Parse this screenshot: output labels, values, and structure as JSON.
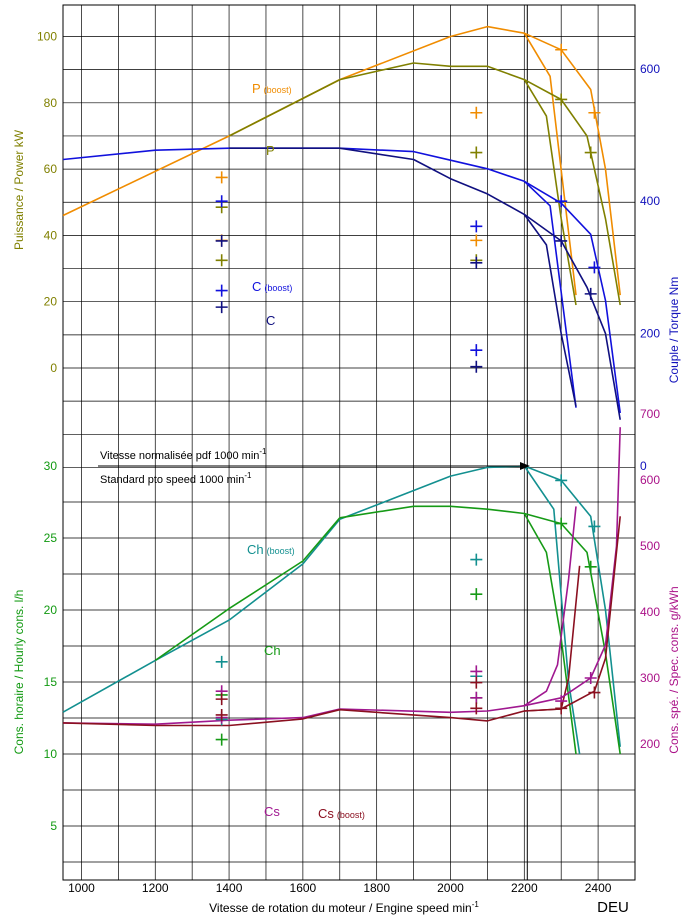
{
  "footer_tag": "DEU",
  "x_axis": {
    "label": "Vitesse de rotation du moteur / Engine speed min",
    "label_sup": "-1",
    "ticks": [
      1000,
      1200,
      1400,
      1600,
      1800,
      2000,
      2200,
      2400
    ],
    "range": [
      950,
      2500
    ]
  },
  "axes": {
    "power": {
      "label": "Puissance / Power kW",
      "ticks": [
        0,
        20,
        40,
        60,
        80,
        100
      ],
      "color": "#808000"
    },
    "torque": {
      "label": "Couple / Torque Nm",
      "ticks": [
        0,
        200,
        400,
        600
      ],
      "color": "#1111bb"
    },
    "hourly": {
      "label": "Cons. horaire / Hourly cons. l/h",
      "ticks": [
        5,
        10,
        15,
        20,
        25,
        30
      ],
      "color": "#119911"
    },
    "specific": {
      "label": "Cons. spé. / Spec. cons. g/kWh",
      "ticks": [
        200,
        300,
        400,
        500,
        600,
        700
      ],
      "color": "#aa1188"
    }
  },
  "pto_note": {
    "line1": "Vitesse normalisée pdf 1000 min",
    "line2": "Standard pto speed 1000 min",
    "sup": "-1"
  },
  "labels": {
    "p_boost_main": "P",
    "p_boost_sub": "(boost)",
    "p": "P",
    "c_boost_main": "C",
    "c_boost_sub": "(boost)",
    "c": "C",
    "ch_boost_main": "Ch",
    "ch_boost_sub": "(boost)",
    "ch": "Ch",
    "cs": "Cs",
    "cs_boost_main": "Cs",
    "cs_boost_sub": "(boost)"
  },
  "chart_data": {
    "type": "line",
    "x_unit": "min-1",
    "series": [
      {
        "name": "P (boost)",
        "axis": "power",
        "color": "#f08c00",
        "x": [
          950,
          1400,
          1700,
          2000,
          2100,
          2200,
          2270,
          2340
        ],
        "y": [
          46,
          70,
          87,
          100,
          103,
          101,
          88,
          22
        ]
      },
      {
        "name": "P",
        "axis": "power",
        "color": "#808000",
        "x": [
          1400,
          1700,
          1900,
          2000,
          2100,
          2200,
          2260,
          2300,
          2340
        ],
        "y": [
          70,
          87,
          92,
          91,
          91,
          87,
          76,
          45,
          19
        ]
      },
      {
        "name": "P (boost) high idle",
        "axis": "power",
        "color": "#f08c00",
        "x": [
          2200,
          2300,
          2380,
          2420,
          2460
        ],
        "y": [
          101,
          96,
          84,
          60,
          22
        ]
      },
      {
        "name": "P high idle",
        "axis": "power",
        "color": "#808000",
        "x": [
          2200,
          2300,
          2370,
          2420,
          2460
        ],
        "y": [
          87,
          81,
          70,
          45,
          19
        ]
      },
      {
        "name": "C (boost)",
        "axis": "torque",
        "color": "#1111dd",
        "x": [
          950,
          1200,
          1400,
          1700,
          1900,
          2000,
          2100,
          2200,
          2270,
          2340
        ],
        "y": [
          463,
          477,
          480,
          480,
          475,
          462,
          449,
          430,
          393,
          88
        ]
      },
      {
        "name": "C",
        "axis": "torque",
        "color": "#101080",
        "x": [
          1400,
          1700,
          1900,
          2000,
          2100,
          2200,
          2260,
          2300,
          2340
        ],
        "y": [
          480,
          480,
          463,
          434,
          411,
          380,
          334,
          200,
          90
        ]
      },
      {
        "name": "C (boost) high idle",
        "axis": "torque",
        "color": "#1111dd",
        "x": [
          2200,
          2300,
          2380,
          2420,
          2460
        ],
        "y": [
          430,
          397,
          350,
          250,
          80
        ]
      },
      {
        "name": "C high idle",
        "axis": "torque",
        "color": "#101080",
        "x": [
          2200,
          2300,
          2370,
          2420,
          2460
        ],
        "y": [
          380,
          340,
          270,
          200,
          70
        ]
      },
      {
        "name": "Ch (boost)",
        "axis": "hourly",
        "color": "#139090",
        "x": [
          950,
          1200,
          1400,
          1600,
          1700,
          2000,
          2100,
          2200,
          2280,
          2320,
          2350
        ],
        "y": [
          12.9,
          16.5,
          19.3,
          23.2,
          26.3,
          29.3,
          29.9,
          30.0,
          27.0,
          15.0,
          10.0
        ]
      },
      {
        "name": "Ch",
        "axis": "hourly",
        "color": "#169a16",
        "x": [
          1200,
          1400,
          1600,
          1700,
          1900,
          2000,
          2100,
          2200,
          2260,
          2300,
          2340
        ],
        "y": [
          16.5,
          20.1,
          23.4,
          26.4,
          27.2,
          27.2,
          27.0,
          26.7,
          24.0,
          18.0,
          10.0
        ]
      },
      {
        "name": "Ch (boost) high idle",
        "axis": "hourly",
        "color": "#139090",
        "x": [
          2200,
          2300,
          2380,
          2420,
          2460
        ],
        "y": [
          30.0,
          29.0,
          26.5,
          20.0,
          10.5
        ]
      },
      {
        "name": "Ch high idle",
        "axis": "hourly",
        "color": "#169a16",
        "x": [
          2200,
          2300,
          2370,
          2420,
          2460
        ],
        "y": [
          26.7,
          26.0,
          24.0,
          17.0,
          10.0
        ]
      },
      {
        "name": "Cs",
        "axis": "specific",
        "color": "#a01890",
        "x": [
          950,
          1200,
          1400,
          1600,
          1700,
          2000,
          2100,
          2200,
          2260,
          2290,
          2320,
          2340
        ],
        "y": [
          232,
          230,
          236,
          240,
          253,
          248,
          250,
          258,
          280,
          320,
          450,
          560
        ]
      },
      {
        "name": "Cs (boost)",
        "axis": "specific",
        "color": "#8b1020",
        "x": [
          950,
          1200,
          1400,
          1600,
          1700,
          2000,
          2100,
          2200,
          2300,
          2320,
          2350
        ],
        "y": [
          232,
          228,
          228,
          238,
          252,
          240,
          235,
          250,
          253,
          300,
          470
        ]
      },
      {
        "name": "Cs high idle",
        "axis": "specific",
        "color": "#a01890",
        "x": [
          2200,
          2300,
          2380,
          2420,
          2450,
          2460
        ],
        "y": [
          258,
          270,
          300,
          350,
          500,
          680
        ]
      },
      {
        "name": "Cs (boost) high idle",
        "axis": "specific",
        "color": "#8b1020",
        "x": [
          2200,
          2300,
          2390,
          2420,
          2460
        ],
        "y": [
          250,
          253,
          280,
          330,
          545
        ]
      }
    ],
    "markers": [
      {
        "axis": "power",
        "color": "#f08c00",
        "points": [
          [
            1380,
            57.5
          ],
          [
            1380,
            38.5
          ],
          [
            2070,
            77
          ],
          [
            2070,
            38.5
          ],
          [
            2300,
            96
          ],
          [
            2390,
            77
          ]
        ]
      },
      {
        "axis": "power",
        "color": "#808000",
        "points": [
          [
            1380,
            48.5
          ],
          [
            1380,
            32.5
          ],
          [
            2070,
            65
          ],
          [
            2070,
            32.5
          ],
          [
            2300,
            81
          ],
          [
            2380,
            65
          ]
        ]
      },
      {
        "axis": "torque",
        "color": "#1111dd",
        "points": [
          [
            1380,
            400
          ],
          [
            1380,
            265
          ],
          [
            2070,
            362
          ],
          [
            2070,
            175
          ],
          [
            2300,
            400
          ],
          [
            2390,
            300
          ]
        ]
      },
      {
        "axis": "torque",
        "color": "#101080",
        "points": [
          [
            1380,
            340
          ],
          [
            1380,
            240
          ],
          [
            2070,
            307
          ],
          [
            2070,
            150
          ],
          [
            2300,
            340
          ],
          [
            2380,
            260
          ]
        ]
      },
      {
        "axis": "hourly",
        "color": "#139090",
        "points": [
          [
            1380,
            16.4
          ],
          [
            1380,
            12.4
          ],
          [
            2070,
            23.5
          ],
          [
            2070,
            15.4
          ],
          [
            2300,
            29.0
          ],
          [
            2390,
            25.8
          ]
        ]
      },
      {
        "axis": "hourly",
        "color": "#169a16",
        "points": [
          [
            1380,
            14.1
          ],
          [
            1380,
            11.0
          ],
          [
            2070,
            21.1
          ],
          [
            2070,
            13.9
          ],
          [
            2300,
            26.0
          ],
          [
            2380,
            23.0
          ]
        ]
      },
      {
        "axis": "specific",
        "color": "#a01890",
        "points": [
          [
            1380,
            280
          ],
          [
            1380,
            240
          ],
          [
            2070,
            310
          ],
          [
            2070,
            270
          ],
          [
            2300,
            265
          ],
          [
            2380,
            300
          ]
        ]
      },
      {
        "axis": "specific",
        "color": "#8b1020",
        "points": [
          [
            1380,
            268
          ],
          [
            1380,
            244
          ],
          [
            2070,
            293
          ],
          [
            2070,
            254
          ],
          [
            2300,
            254
          ],
          [
            2390,
            278
          ]
        ]
      }
    ],
    "pto_speed_line_x": 2200
  }
}
